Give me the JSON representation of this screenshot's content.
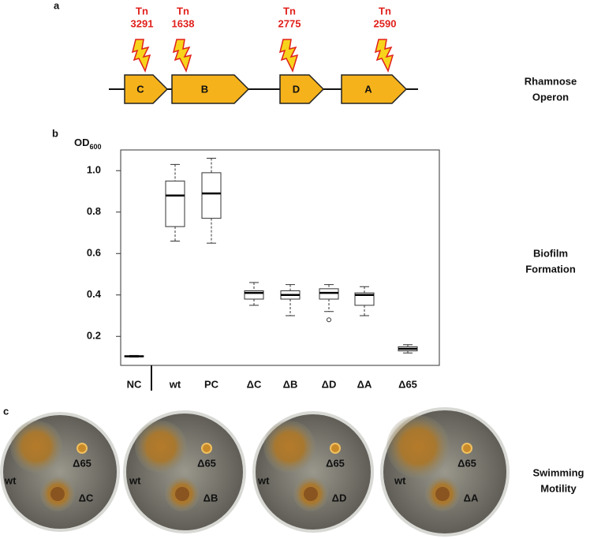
{
  "panel_a": {
    "label": "a",
    "insertions": [
      {
        "name": "Tn",
        "number": "3291"
      },
      {
        "name": "Tn",
        "number": "1638"
      },
      {
        "name": "Tn",
        "number": "2775"
      },
      {
        "name": "Tn",
        "number": "2590"
      }
    ],
    "genes": [
      "C",
      "B",
      "D",
      "A"
    ],
    "caption": [
      "Rhamnose",
      "Operon"
    ]
  },
  "chart_data": {
    "type": "box",
    "panel_label": "b",
    "y_label": "OD",
    "y_label_sub": "600",
    "categories": [
      "NC",
      "wt",
      "PC",
      "ΔC",
      "ΔB",
      "ΔD",
      "ΔA",
      "Δ65"
    ],
    "boxes": [
      {
        "min": 0.1,
        "q1": 0.102,
        "median": 0.104,
        "q3": 0.106,
        "max": 0.108,
        "outliers": []
      },
      {
        "min": 0.66,
        "q1": 0.73,
        "median": 0.88,
        "q3": 0.95,
        "max": 1.03,
        "outliers": []
      },
      {
        "min": 0.65,
        "q1": 0.77,
        "median": 0.89,
        "q3": 0.99,
        "max": 1.06,
        "outliers": []
      },
      {
        "min": 0.35,
        "q1": 0.38,
        "median": 0.41,
        "q3": 0.42,
        "max": 0.46,
        "outliers": []
      },
      {
        "min": 0.3,
        "q1": 0.38,
        "median": 0.4,
        "q3": 0.42,
        "max": 0.45,
        "outliers": []
      },
      {
        "min": 0.32,
        "q1": 0.38,
        "median": 0.41,
        "q3": 0.43,
        "max": 0.45,
        "outliers": [
          0.28
        ]
      },
      {
        "min": 0.3,
        "q1": 0.35,
        "median": 0.4,
        "q3": 0.41,
        "max": 0.44,
        "outliers": []
      },
      {
        "min": 0.12,
        "q1": 0.13,
        "median": 0.14,
        "q3": 0.15,
        "max": 0.16,
        "outliers": []
      }
    ],
    "ylim": [
      0.06,
      1.1
    ],
    "yticks": [
      0.2,
      0.4,
      0.6,
      0.8,
      {
        "value": 1,
        "label": "1.0"
      }
    ],
    "caption": [
      "Biofilm",
      "Formation"
    ]
  },
  "panel_c": {
    "label": "c",
    "plates": [
      {
        "left": "wt",
        "top": "Δ65",
        "bottom": "ΔC"
      },
      {
        "left": "wt",
        "top": "Δ65",
        "bottom": "ΔB"
      },
      {
        "left": "wt",
        "top": "Δ65",
        "bottom": "ΔD"
      },
      {
        "left": "wt",
        "top": "Δ65",
        "bottom": "ΔA"
      }
    ],
    "caption": [
      "Swimming",
      "Motility"
    ]
  }
}
